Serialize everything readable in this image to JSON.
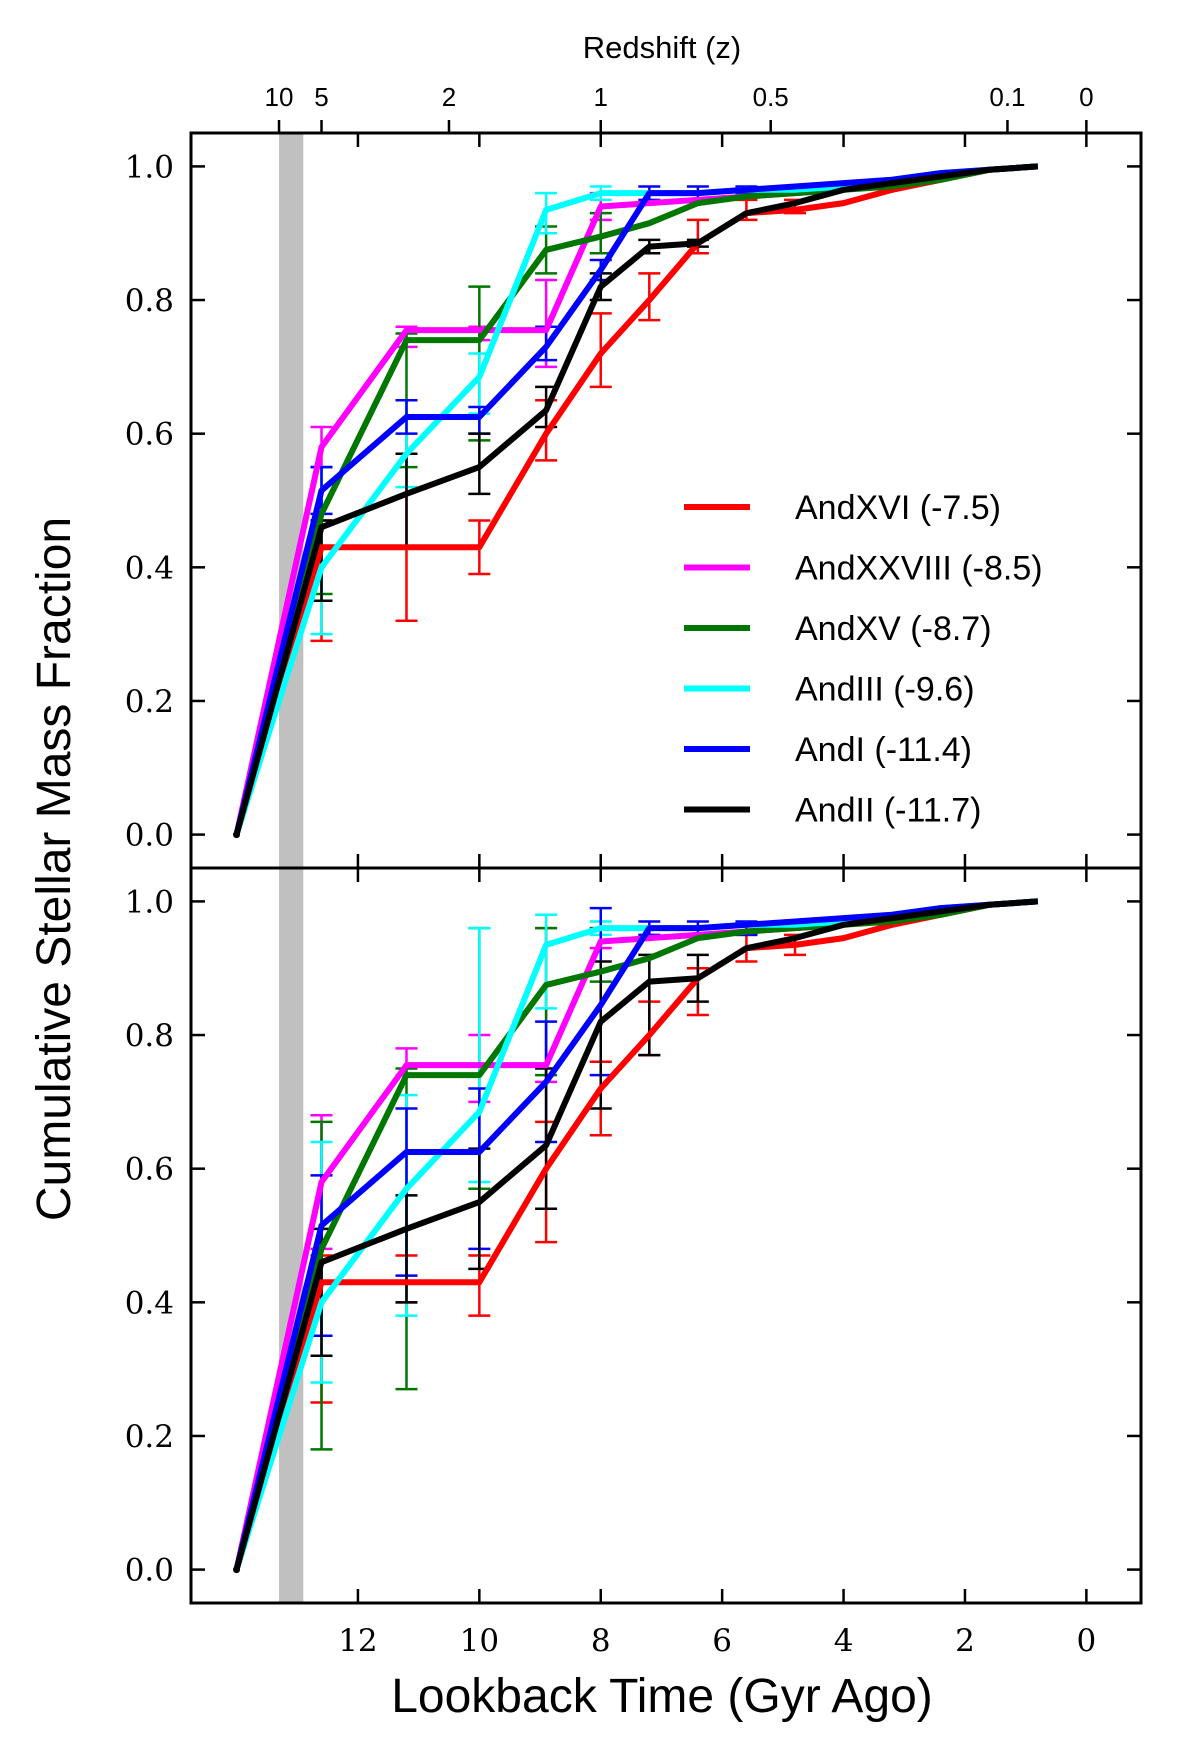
{
  "chart_data": {
    "type": "line",
    "top_axis_label": "Redshift (z)",
    "top_ticks": [
      {
        "label": "10",
        "t": 13.3
      },
      {
        "label": "5",
        "t": 12.6
      },
      {
        "label": "2",
        "t": 10.5
      },
      {
        "label": "1",
        "t": 8.0
      },
      {
        "label": "0.5",
        "t": 5.2
      },
      {
        "label": "0.1",
        "t": 1.3
      },
      {
        "label": "0",
        "t": 0.0
      }
    ],
    "xlabel": "Lookback Time (Gyr Ago)",
    "ylabel": "Cumulative Stellar Mass Fraction",
    "xlim": [
      14.75,
      -0.9
    ],
    "ylim": [
      -0.05,
      1.05
    ],
    "x_ticks": [
      12,
      10,
      8,
      6,
      4,
      2,
      0
    ],
    "y_ticks": [
      "0.0",
      "0.2",
      "0.4",
      "0.6",
      "0.8",
      "1.0"
    ],
    "reionization_band": [
      13.3,
      12.9
    ],
    "legend_position": "center-right (top panel)",
    "colors": {
      "AndXVI": "#ff0000",
      "AndXXVIII": "#ff00ff",
      "AndXV": "#007700",
      "AndIII": "#00ffff",
      "AndI": "#0000ff",
      "AndII": "#000000",
      "band": "#c0c0c0"
    },
    "series": [
      {
        "name": "AndXVI (-7.5)",
        "key": "AndXVI",
        "x": [
          14.0,
          12.6,
          11.2,
          10.0,
          8.9,
          8.0,
          7.2,
          6.4,
          5.6,
          4.8,
          4.0,
          3.2,
          2.4,
          1.6,
          0.8
        ],
        "y": [
          0.0,
          0.43,
          0.43,
          0.43,
          0.6,
          0.72,
          0.8,
          0.885,
          0.93,
          0.935,
          0.945,
          0.965,
          0.98,
          0.995,
          1.0
        ],
        "err_top": [
          [
            12.6,
            0.29,
            0.47
          ],
          [
            11.2,
            0.32,
            0.57
          ],
          [
            10.0,
            0.39,
            0.47
          ],
          [
            8.9,
            0.56,
            0.65
          ],
          [
            8.0,
            0.67,
            0.78
          ],
          [
            7.2,
            0.77,
            0.84
          ],
          [
            6.4,
            0.87,
            0.92
          ],
          [
            5.6,
            0.92,
            0.95
          ],
          [
            4.8,
            0.93,
            0.95
          ]
        ],
        "err_bottom": [
          [
            12.6,
            0.25,
            0.47
          ],
          [
            11.2,
            0.4,
            0.47
          ],
          [
            10.0,
            0.38,
            0.47
          ],
          [
            8.9,
            0.49,
            0.67
          ],
          [
            8.0,
            0.65,
            0.76
          ],
          [
            7.2,
            0.77,
            0.85
          ],
          [
            6.4,
            0.83,
            0.9
          ],
          [
            5.6,
            0.91,
            0.95
          ],
          [
            4.8,
            0.92,
            0.95
          ]
        ]
      },
      {
        "name": "AndXXVIII (-8.5)",
        "key": "AndXXVIII",
        "x": [
          14.0,
          12.6,
          11.2,
          10.0,
          8.9,
          8.0,
          7.2,
          6.4,
          5.6,
          4.8,
          4.0,
          3.2,
          2.4,
          1.6,
          0.8
        ],
        "y": [
          0.0,
          0.58,
          0.755,
          0.755,
          0.755,
          0.94,
          0.945,
          0.95,
          0.955,
          0.96,
          0.965,
          0.975,
          0.985,
          0.995,
          1.0
        ],
        "err_top": [
          [
            12.6,
            0.55,
            0.61
          ],
          [
            11.2,
            0.73,
            0.76
          ],
          [
            10.0,
            0.74,
            0.76
          ],
          [
            8.9,
            0.7,
            0.83
          ],
          [
            8.0,
            0.92,
            0.96
          ]
        ],
        "err_bottom": [
          [
            12.6,
            0.48,
            0.68
          ],
          [
            11.2,
            0.74,
            0.78
          ],
          [
            10.0,
            0.7,
            0.8
          ],
          [
            8.9,
            0.73,
            0.96
          ],
          [
            8.0,
            0.93,
            0.96
          ]
        ]
      },
      {
        "name": "AndXV (-8.7)",
        "key": "AndXV",
        "x": [
          14.0,
          12.6,
          11.2,
          10.0,
          8.9,
          8.0,
          7.2,
          6.4,
          5.6,
          4.8,
          4.0,
          3.2,
          2.4,
          1.6,
          0.8
        ],
        "y": [
          0.0,
          0.48,
          0.74,
          0.74,
          0.875,
          0.895,
          0.915,
          0.945,
          0.955,
          0.96,
          0.965,
          0.97,
          0.98,
          0.995,
          1.0
        ],
        "err_top": [
          [
            12.6,
            0.36,
            0.55
          ],
          [
            11.2,
            0.55,
            0.75
          ],
          [
            10.0,
            0.59,
            0.82
          ],
          [
            8.9,
            0.84,
            0.91
          ],
          [
            8.0,
            0.87,
            0.93
          ]
        ],
        "err_bottom": [
          [
            12.6,
            0.18,
            0.67
          ],
          [
            11.2,
            0.27,
            0.75
          ],
          [
            10.0,
            0.57,
            0.96
          ],
          [
            8.9,
            0.74,
            0.96
          ],
          [
            8.0,
            0.88,
            0.96
          ]
        ]
      },
      {
        "name": "AndIII (-9.6)",
        "key": "AndIII",
        "x": [
          14.0,
          12.6,
          11.2,
          10.0,
          8.9,
          8.0,
          7.2,
          6.4,
          5.6,
          4.8,
          4.0,
          3.2,
          2.4,
          1.6,
          0.8
        ],
        "y": [
          0.0,
          0.4,
          0.57,
          0.685,
          0.935,
          0.96,
          0.96,
          0.96,
          0.965,
          0.965,
          0.97,
          0.98,
          0.99,
          0.995,
          1.0
        ],
        "err_top": [
          [
            12.6,
            0.3,
            0.55
          ],
          [
            11.2,
            0.52,
            0.65
          ],
          [
            10.0,
            0.63,
            0.72
          ],
          [
            8.9,
            0.9,
            0.96
          ],
          [
            8.0,
            0.95,
            0.97
          ]
        ],
        "err_bottom": [
          [
            12.6,
            0.28,
            0.64
          ],
          [
            11.2,
            0.38,
            0.71
          ],
          [
            10.0,
            0.58,
            0.96
          ],
          [
            8.9,
            0.84,
            0.98
          ],
          [
            8.0,
            0.95,
            0.97
          ]
        ]
      },
      {
        "name": "AndI (-11.4)",
        "key": "AndI",
        "x": [
          14.0,
          12.6,
          11.2,
          10.0,
          8.9,
          8.0,
          7.2,
          6.4,
          5.6,
          4.8,
          4.0,
          3.2,
          2.4,
          1.6,
          0.8
        ],
        "y": [
          0.0,
          0.515,
          0.625,
          0.625,
          0.73,
          0.845,
          0.96,
          0.96,
          0.965,
          0.97,
          0.975,
          0.98,
          0.99,
          0.995,
          1.0
        ],
        "err_top": [
          [
            12.6,
            0.48,
            0.55
          ],
          [
            11.2,
            0.6,
            0.65
          ],
          [
            10.0,
            0.6,
            0.64
          ],
          [
            8.9,
            0.71,
            0.76
          ],
          [
            8.0,
            0.83,
            0.86
          ],
          [
            7.2,
            0.95,
            0.97
          ],
          [
            6.4,
            0.95,
            0.97
          ],
          [
            5.6,
            0.96,
            0.97
          ]
        ],
        "err_bottom": [
          [
            12.6,
            0.35,
            0.59
          ],
          [
            11.2,
            0.44,
            0.69
          ],
          [
            10.0,
            0.48,
            0.72
          ],
          [
            8.9,
            0.64,
            0.82
          ],
          [
            8.0,
            0.74,
            0.99
          ],
          [
            7.2,
            0.95,
            0.97
          ],
          [
            6.4,
            0.95,
            0.97
          ],
          [
            5.6,
            0.95,
            0.97
          ]
        ]
      },
      {
        "name": "AndII (-11.7)",
        "key": "AndII",
        "x": [
          14.0,
          12.6,
          11.2,
          10.0,
          8.9,
          8.0,
          7.2,
          6.4,
          5.6,
          4.8,
          4.0,
          3.2,
          2.4,
          1.6,
          0.8
        ],
        "y": [
          0.0,
          0.46,
          0.51,
          0.55,
          0.635,
          0.82,
          0.88,
          0.885,
          0.93,
          0.945,
          0.965,
          0.975,
          0.985,
          0.995,
          1.0
        ],
        "err_top": [
          [
            12.6,
            0.35,
            0.47
          ],
          [
            11.2,
            0.43,
            0.57
          ],
          [
            10.0,
            0.51,
            0.6
          ],
          [
            8.9,
            0.61,
            0.67
          ],
          [
            8.0,
            0.8,
            0.84
          ],
          [
            7.2,
            0.87,
            0.89
          ],
          [
            6.4,
            0.88,
            0.89
          ]
        ],
        "err_bottom": [
          [
            12.6,
            0.32,
            0.51
          ],
          [
            11.2,
            0.4,
            0.56
          ],
          [
            10.0,
            0.45,
            0.63
          ],
          [
            8.9,
            0.54,
            0.75
          ],
          [
            8.0,
            0.69,
            0.91
          ],
          [
            7.2,
            0.77,
            0.92
          ],
          [
            6.4,
            0.85,
            0.92
          ]
        ]
      }
    ]
  }
}
